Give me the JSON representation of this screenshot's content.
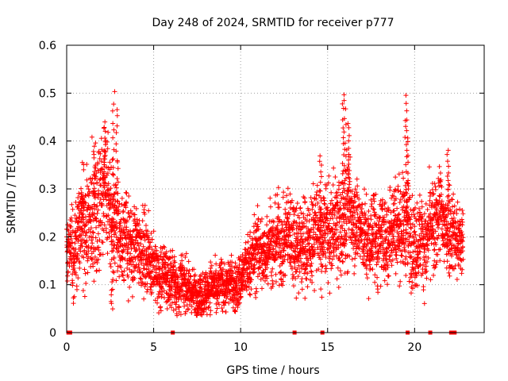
{
  "chart_data": {
    "type": "scatter",
    "title": "Day 248 of 2024, SRMTID for receiver p777",
    "xlabel": "GPS time / hours",
    "ylabel": "SRMTID / TECUs",
    "xlim": [
      0,
      24
    ],
    "ylim": [
      0,
      0.6
    ],
    "xticks": [
      0,
      5,
      10,
      15,
      20
    ],
    "xtick_labels": [
      "0",
      "5",
      "10",
      "15",
      "20"
    ],
    "yticks": [
      0,
      0.1,
      0.2,
      0.3,
      0.4,
      0.5,
      0.6
    ],
    "ytick_labels": [
      "0",
      "0.1",
      "0.2",
      "0.3",
      "0.4",
      "0.5",
      "0.6"
    ],
    "grid": true,
    "marker": "+",
    "colors": {
      "series": "#ff0000",
      "grid": "#a0a0a0",
      "axes": "#000000"
    },
    "series": [
      {
        "name": "SRMTID",
        "color": "#ff0000",
        "profile": [
          [
            0.0,
            0.17,
            0.05
          ],
          [
            0.5,
            0.17,
            0.05
          ],
          [
            1.0,
            0.25,
            0.07
          ],
          [
            1.5,
            0.26,
            0.08
          ],
          [
            2.0,
            0.32,
            0.08
          ],
          [
            2.5,
            0.24,
            0.08
          ],
          [
            3.0,
            0.21,
            0.06
          ],
          [
            3.5,
            0.19,
            0.06
          ],
          [
            4.0,
            0.18,
            0.05
          ],
          [
            4.5,
            0.15,
            0.05
          ],
          [
            5.0,
            0.13,
            0.04
          ],
          [
            5.5,
            0.12,
            0.04
          ],
          [
            6.0,
            0.11,
            0.035
          ],
          [
            6.5,
            0.1,
            0.035
          ],
          [
            7.0,
            0.09,
            0.03
          ],
          [
            7.5,
            0.09,
            0.03
          ],
          [
            8.0,
            0.09,
            0.03
          ],
          [
            8.5,
            0.09,
            0.03
          ],
          [
            9.0,
            0.1,
            0.03
          ],
          [
            9.5,
            0.1,
            0.03
          ],
          [
            10.0,
            0.11,
            0.035
          ],
          [
            10.5,
            0.13,
            0.04
          ],
          [
            11.0,
            0.16,
            0.05
          ],
          [
            11.5,
            0.18,
            0.05
          ],
          [
            12.0,
            0.19,
            0.05
          ],
          [
            12.5,
            0.19,
            0.05
          ],
          [
            13.0,
            0.2,
            0.06
          ],
          [
            13.5,
            0.2,
            0.06
          ],
          [
            14.0,
            0.21,
            0.06
          ],
          [
            14.5,
            0.2,
            0.06
          ],
          [
            15.0,
            0.21,
            0.06
          ],
          [
            15.5,
            0.22,
            0.06
          ],
          [
            16.0,
            0.25,
            0.08
          ],
          [
            16.5,
            0.23,
            0.06
          ],
          [
            17.0,
            0.19,
            0.05
          ],
          [
            17.5,
            0.2,
            0.06
          ],
          [
            18.0,
            0.19,
            0.05
          ],
          [
            18.5,
            0.2,
            0.06
          ],
          [
            19.0,
            0.22,
            0.06
          ],
          [
            19.5,
            0.24,
            0.06
          ],
          [
            20.0,
            0.2,
            0.06
          ],
          [
            20.5,
            0.18,
            0.05
          ],
          [
            21.0,
            0.22,
            0.06
          ],
          [
            21.5,
            0.24,
            0.06
          ],
          [
            22.0,
            0.23,
            0.06
          ],
          [
            22.5,
            0.18,
            0.05
          ],
          [
            22.8,
            0.17,
            0.05
          ]
        ],
        "peaks": [
          [
            2.2,
            0.43
          ],
          [
            2.7,
            0.5
          ],
          [
            2.9,
            0.47
          ],
          [
            15.9,
            0.5
          ],
          [
            16.0,
            0.48
          ],
          [
            16.2,
            0.44
          ],
          [
            19.5,
            0.5
          ],
          [
            19.6,
            0.44
          ],
          [
            21.9,
            0.38
          ],
          [
            14.6,
            0.37
          ],
          [
            0.9,
            0.29
          ],
          [
            1.6,
            0.4
          ],
          [
            2.6,
            0.05
          ]
        ],
        "samples_per_hour": 170
      }
    ],
    "zero_gap_markers_hours": [
      0.1,
      0.2,
      6.1,
      13.1,
      14.7,
      19.6,
      20.9,
      22.1,
      22.3
    ]
  }
}
